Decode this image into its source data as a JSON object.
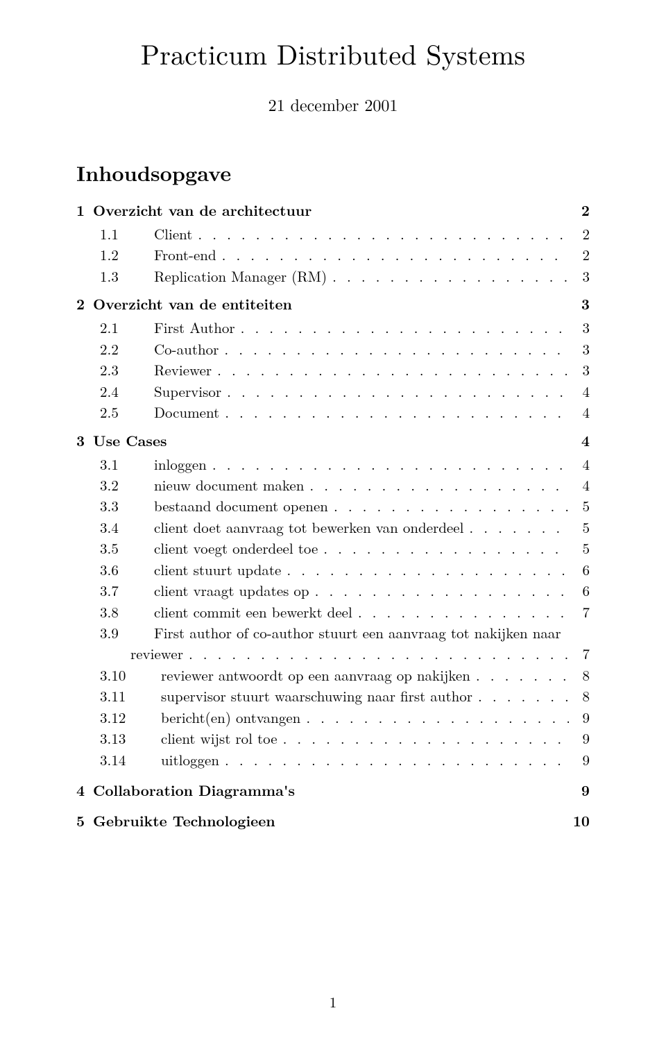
{
  "title": "Practicum Distributed Systems",
  "date": "21 december 2001",
  "toc_heading": "Inhoudsopgave",
  "footer_page": "1",
  "sections": [
    {
      "num": "1",
      "label": "Overzicht van de architectuur",
      "page": "2",
      "entries": [
        {
          "num": "1.1",
          "label": "Client",
          "page": "2"
        },
        {
          "num": "1.2",
          "label": "Front-end",
          "page": "2"
        },
        {
          "num": "1.3",
          "label": "Replication Manager (RM)",
          "page": "3"
        }
      ]
    },
    {
      "num": "2",
      "label": "Overzicht van de entiteiten",
      "page": "3",
      "entries": [
        {
          "num": "2.1",
          "label": "First Author",
          "page": "3"
        },
        {
          "num": "2.2",
          "label": "Co-author",
          "page": "3"
        },
        {
          "num": "2.3",
          "label": "Reviewer",
          "page": "3"
        },
        {
          "num": "2.4",
          "label": "Supervisor",
          "page": "4"
        },
        {
          "num": "2.5",
          "label": "Document",
          "page": "4"
        }
      ]
    },
    {
      "num": "3",
      "label": "Use Cases",
      "page": "4",
      "entries": [
        {
          "num": "3.1",
          "label": "inloggen",
          "page": "4"
        },
        {
          "num": "3.2",
          "label": "nieuw document maken",
          "page": "4"
        },
        {
          "num": "3.3",
          "label": "bestaand document openen",
          "page": "5"
        },
        {
          "num": "3.4",
          "label": "client doet aanvraag tot bewerken van onderdeel",
          "page": "5"
        },
        {
          "num": "3.5",
          "label": "client voegt onderdeel toe",
          "page": "5"
        },
        {
          "num": "3.6",
          "label": "client stuurt update",
          "page": "6"
        },
        {
          "num": "3.7",
          "label": "client vraagt updates op",
          "page": "6"
        },
        {
          "num": "3.8",
          "label": "client commit een bewerkt deel",
          "page": "7"
        },
        {
          "num": "3.9",
          "label": "First author of co-author stuurt een aanvraag tot nakijken naar",
          "cont": "reviewer",
          "page": "7"
        },
        {
          "num": "3.10",
          "label": "reviewer antwoordt op een aanvraag op nakijken",
          "page": "8",
          "wide": true
        },
        {
          "num": "3.11",
          "label": "supervisor stuurt waarschuwing naar first author",
          "page": "8",
          "wide": true
        },
        {
          "num": "3.12",
          "label": "bericht(en) ontvangen",
          "page": "9",
          "wide": true
        },
        {
          "num": "3.13",
          "label": "client wijst rol toe",
          "page": "9",
          "wide": true
        },
        {
          "num": "3.14",
          "label": "uitloggen",
          "page": "9",
          "wide": true
        }
      ]
    },
    {
      "num": "4",
      "label": "Collaboration Diagramma's",
      "page": "9",
      "entries": []
    },
    {
      "num": "5",
      "label": "Gebruikte Technologieen",
      "page": "10",
      "entries": []
    }
  ]
}
